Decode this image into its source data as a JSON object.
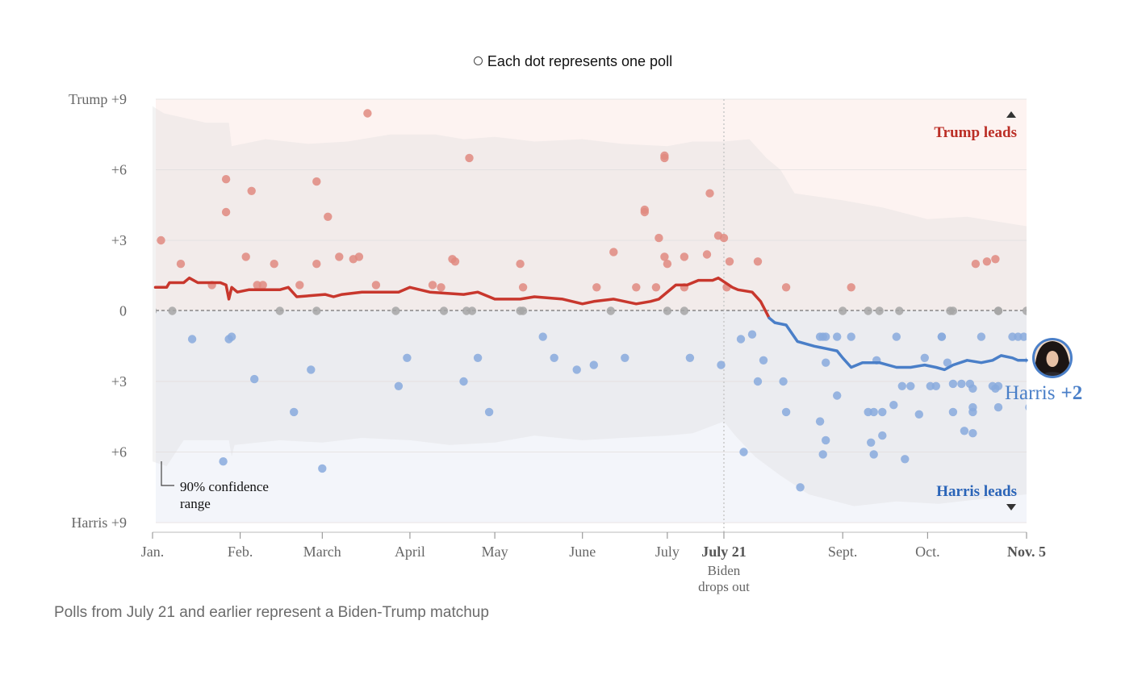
{
  "legend": {
    "label": "Each dot represents one poll"
  },
  "footnote": "Polls from July 21 and earlier represent a Biden-Trump matchup",
  "chart_data": {
    "type": "line",
    "xaxis": {
      "domain": [
        "2024-01-01",
        "2024-11-05"
      ],
      "ticks": [
        {
          "date": "2024-01-01",
          "label": "Jan."
        },
        {
          "date": "2024-02-01",
          "label": "Feb."
        },
        {
          "date": "2024-03-01",
          "label": "March"
        },
        {
          "date": "2024-04-01",
          "label": "April"
        },
        {
          "date": "2024-05-01",
          "label": "May"
        },
        {
          "date": "2024-06-01",
          "label": "June"
        },
        {
          "date": "2024-07-01",
          "label": "July"
        },
        {
          "date": "2024-07-21",
          "label": "July 21",
          "bold": true,
          "sub": [
            "Biden",
            "drops out"
          ]
        },
        {
          "date": "2024-09-01",
          "label": "Sept."
        },
        {
          "date": "2024-10-01",
          "label": "Oct."
        },
        {
          "date": "2024-11-05",
          "label": "Nov. 5",
          "bold": true
        }
      ]
    },
    "yaxis": {
      "domain": [
        -9,
        9
      ],
      "ticks": [
        {
          "value": 9,
          "label": "Trump +9"
        },
        {
          "value": 6,
          "label": "+6"
        },
        {
          "value": 3,
          "label": "+3"
        },
        {
          "value": 0,
          "label": "0"
        },
        {
          "value": -3,
          "label": "+3"
        },
        {
          "value": -6,
          "label": "+6"
        },
        {
          "value": -9,
          "label": "Harris +9"
        }
      ]
    },
    "annotations": {
      "trump_leads": "Trump leads",
      "harris_leads": "Harris leads",
      "confidence": [
        "90% confidence",
        "range"
      ],
      "final_name": "Harris",
      "final_value": "+2"
    },
    "colors": {
      "trump": "#c8372d",
      "harris": "#4a7fc8",
      "trump_dot": "#e08a80",
      "harris_dot": "#88aadd",
      "tie_dot": "#a6a6a6",
      "trump_label": "#bb2e26",
      "harris_label": "#2a64b8",
      "band": "#dcdcdc"
    },
    "band_upper": [
      [
        "2024-01-01",
        8.7
      ],
      [
        "2024-01-05",
        8.4
      ],
      [
        "2024-01-20",
        8.0
      ],
      [
        "2024-01-28",
        8.0
      ],
      [
        "2024-01-29",
        7.0
      ],
      [
        "2024-02-10",
        7.3
      ],
      [
        "2024-02-25",
        7.1
      ],
      [
        "2024-03-10",
        7.2
      ],
      [
        "2024-03-25",
        7.5
      ],
      [
        "2024-04-10",
        7.5
      ],
      [
        "2024-04-20",
        7.3
      ],
      [
        "2024-05-01",
        7.4
      ],
      [
        "2024-05-15",
        7.2
      ],
      [
        "2024-06-01",
        7.3
      ],
      [
        "2024-06-15",
        7.1
      ],
      [
        "2024-07-01",
        7.0
      ],
      [
        "2024-07-10",
        7.2
      ],
      [
        "2024-07-21",
        7.2
      ],
      [
        "2024-07-30",
        7.3
      ],
      [
        "2024-08-05",
        6.5
      ],
      [
        "2024-08-10",
        6.0
      ],
      [
        "2024-08-15",
        5.0
      ],
      [
        "2024-09-01",
        4.7
      ],
      [
        "2024-09-15",
        4.4
      ],
      [
        "2024-10-01",
        3.9
      ],
      [
        "2024-10-15",
        4.0
      ],
      [
        "2024-11-05",
        3.6
      ]
    ],
    "band_lower": [
      [
        "2024-01-01",
        -6.4
      ],
      [
        "2024-01-06",
        -6.6
      ],
      [
        "2024-01-12",
        -5.5
      ],
      [
        "2024-01-28",
        -5.5
      ],
      [
        "2024-01-29",
        -6.2
      ],
      [
        "2024-01-30",
        -5.7
      ],
      [
        "2024-02-15",
        -5.5
      ],
      [
        "2024-03-01",
        -5.6
      ],
      [
        "2024-03-15",
        -5.4
      ],
      [
        "2024-04-01",
        -5.5
      ],
      [
        "2024-04-15",
        -5.7
      ],
      [
        "2024-05-01",
        -5.6
      ],
      [
        "2024-05-15",
        -5.3
      ],
      [
        "2024-06-01",
        -5.5
      ],
      [
        "2024-06-15",
        -5.4
      ],
      [
        "2024-07-01",
        -5.3
      ],
      [
        "2024-07-10",
        -5.2
      ],
      [
        "2024-07-21",
        -4.7
      ],
      [
        "2024-07-25",
        -5.3
      ],
      [
        "2024-08-01",
        -6.2
      ],
      [
        "2024-08-10",
        -7.0
      ],
      [
        "2024-08-20",
        -7.8
      ],
      [
        "2024-09-05",
        -8.3
      ],
      [
        "2024-09-20",
        -8.1
      ],
      [
        "2024-10-05",
        -8.2
      ],
      [
        "2024-10-20",
        -8.0
      ],
      [
        "2024-11-05",
        -7.8
      ]
    ],
    "series": [
      {
        "name": "Trump",
        "values": [
          [
            "2024-01-02",
            1.0
          ],
          [
            "2024-01-06",
            1.0
          ],
          [
            "2024-01-07",
            1.2
          ],
          [
            "2024-01-12",
            1.2
          ],
          [
            "2024-01-14",
            1.4
          ],
          [
            "2024-01-17",
            1.2
          ],
          [
            "2024-01-25",
            1.2
          ],
          [
            "2024-01-27",
            1.1
          ],
          [
            "2024-01-28",
            0.5
          ],
          [
            "2024-01-29",
            1.0
          ],
          [
            "2024-01-31",
            0.8
          ],
          [
            "2024-02-04",
            0.9
          ],
          [
            "2024-02-15",
            0.9
          ],
          [
            "2024-02-18",
            1.0
          ],
          [
            "2024-02-21",
            0.6
          ],
          [
            "2024-03-02",
            0.7
          ],
          [
            "2024-03-05",
            0.6
          ],
          [
            "2024-03-08",
            0.7
          ],
          [
            "2024-03-15",
            0.8
          ],
          [
            "2024-03-28",
            0.8
          ],
          [
            "2024-04-01",
            1.0
          ],
          [
            "2024-04-08",
            0.8
          ],
          [
            "2024-04-20",
            0.7
          ],
          [
            "2024-04-25",
            0.8
          ],
          [
            "2024-05-01",
            0.5
          ],
          [
            "2024-05-10",
            0.5
          ],
          [
            "2024-05-15",
            0.6
          ],
          [
            "2024-05-25",
            0.5
          ],
          [
            "2024-06-01",
            0.3
          ],
          [
            "2024-06-05",
            0.4
          ],
          [
            "2024-06-12",
            0.5
          ],
          [
            "2024-06-20",
            0.3
          ],
          [
            "2024-06-25",
            0.4
          ],
          [
            "2024-06-28",
            0.5
          ],
          [
            "2024-07-04",
            1.1
          ],
          [
            "2024-07-08",
            1.1
          ],
          [
            "2024-07-12",
            1.3
          ],
          [
            "2024-07-17",
            1.3
          ],
          [
            "2024-07-19",
            1.4
          ],
          [
            "2024-07-24",
            1.0
          ],
          [
            "2024-07-26",
            0.9
          ],
          [
            "2024-07-31",
            0.8
          ],
          [
            "2024-08-03",
            0.4
          ],
          [
            "2024-08-06",
            -0.3
          ]
        ]
      },
      {
        "name": "Harris",
        "values": [
          [
            "2024-08-06",
            -0.3
          ],
          [
            "2024-08-08",
            -0.5
          ],
          [
            "2024-08-12",
            -0.6
          ],
          [
            "2024-08-16",
            -1.3
          ],
          [
            "2024-08-22",
            -1.5
          ],
          [
            "2024-08-26",
            -1.6
          ],
          [
            "2024-08-30",
            -1.7
          ],
          [
            "2024-09-01",
            -2.0
          ],
          [
            "2024-09-04",
            -2.4
          ],
          [
            "2024-09-08",
            -2.2
          ],
          [
            "2024-09-14",
            -2.2
          ],
          [
            "2024-09-20",
            -2.4
          ],
          [
            "2024-09-25",
            -2.4
          ],
          [
            "2024-09-30",
            -2.3
          ],
          [
            "2024-10-04",
            -2.4
          ],
          [
            "2024-10-07",
            -2.5
          ],
          [
            "2024-10-10",
            -2.3
          ],
          [
            "2024-10-15",
            -2.1
          ],
          [
            "2024-10-20",
            -2.2
          ],
          [
            "2024-10-24",
            -2.1
          ],
          [
            "2024-10-27",
            -1.9
          ],
          [
            "2024-10-31",
            -2.0
          ],
          [
            "2024-11-02",
            -2.1
          ],
          [
            "2024-11-05",
            -2.1
          ]
        ]
      }
    ],
    "polls": [
      [
        "2024-01-01",
        0
      ],
      [
        "2024-01-04",
        3.0
      ],
      [
        "2024-01-08",
        0
      ],
      [
        "2024-01-11",
        2.0
      ],
      [
        "2024-01-15",
        -1.2
      ],
      [
        "2024-01-22",
        1.1
      ],
      [
        "2024-01-26",
        -6.4
      ],
      [
        "2024-01-27",
        5.6
      ],
      [
        "2024-01-27",
        4.2
      ],
      [
        "2024-01-28",
        -1.2
      ],
      [
        "2024-01-29",
        -1.1
      ],
      [
        "2024-02-03",
        2.3
      ],
      [
        "2024-02-05",
        5.1
      ],
      [
        "2024-02-06",
        -2.9
      ],
      [
        "2024-02-07",
        1.1
      ],
      [
        "2024-02-09",
        1.1
      ],
      [
        "2024-02-13",
        2.0
      ],
      [
        "2024-02-15",
        0
      ],
      [
        "2024-02-20",
        -4.3
      ],
      [
        "2024-02-22",
        1.1
      ],
      [
        "2024-02-26",
        -2.5
      ],
      [
        "2024-02-28",
        5.5
      ],
      [
        "2024-02-28",
        2.0
      ],
      [
        "2024-02-28",
        0
      ],
      [
        "2024-03-01",
        -6.7
      ],
      [
        "2024-03-03",
        4.0
      ],
      [
        "2024-03-07",
        2.3
      ],
      [
        "2024-03-12",
        2.2
      ],
      [
        "2024-03-14",
        2.3
      ],
      [
        "2024-03-17",
        8.4
      ],
      [
        "2024-03-20",
        1.1
      ],
      [
        "2024-03-27",
        0
      ],
      [
        "2024-03-28",
        -3.2
      ],
      [
        "2024-03-31",
        -2.0
      ],
      [
        "2024-04-09",
        1.1
      ],
      [
        "2024-04-12",
        1.0
      ],
      [
        "2024-04-13",
        0
      ],
      [
        "2024-04-16",
        2.2
      ],
      [
        "2024-04-17",
        2.1
      ],
      [
        "2024-04-20",
        -3.0
      ],
      [
        "2024-04-22",
        6.5
      ],
      [
        "2024-04-21",
        0
      ],
      [
        "2024-04-23",
        0
      ],
      [
        "2024-04-25",
        -2.0
      ],
      [
        "2024-04-29",
        -4.3
      ],
      [
        "2024-05-10",
        2.0
      ],
      [
        "2024-05-10",
        0
      ],
      [
        "2024-05-11",
        1.0
      ],
      [
        "2024-05-11",
        0
      ],
      [
        "2024-05-18",
        -1.1
      ],
      [
        "2024-05-22",
        -2.0
      ],
      [
        "2024-05-30",
        -2.5
      ],
      [
        "2024-06-05",
        -2.3
      ],
      [
        "2024-06-06",
        1.0
      ],
      [
        "2024-06-11",
        0
      ],
      [
        "2024-06-12",
        2.5
      ],
      [
        "2024-06-16",
        -2.0
      ],
      [
        "2024-06-20",
        1.0
      ],
      [
        "2024-06-23",
        4.3
      ],
      [
        "2024-06-23",
        4.2
      ],
      [
        "2024-06-27",
        1.0
      ],
      [
        "2024-06-28",
        3.1
      ],
      [
        "2024-06-30",
        2.3
      ],
      [
        "2024-06-30",
        6.6
      ],
      [
        "2024-06-30",
        6.5
      ],
      [
        "2024-07-01",
        2.0
      ],
      [
        "2024-07-01",
        0
      ],
      [
        "2024-07-07",
        1.0
      ],
      [
        "2024-07-07",
        0
      ],
      [
        "2024-07-07",
        2.3
      ],
      [
        "2024-07-09",
        -2.0
      ],
      [
        "2024-07-15",
        2.4
      ],
      [
        "2024-07-16",
        5.0
      ],
      [
        "2024-07-19",
        3.2
      ],
      [
        "2024-07-20",
        -2.3
      ],
      [
        "2024-07-21",
        3.1
      ],
      [
        "2024-07-22",
        1.0
      ],
      [
        "2024-07-23",
        2.1
      ],
      [
        "2024-07-27",
        -1.2
      ],
      [
        "2024-07-28",
        -6.0
      ],
      [
        "2024-07-31",
        -1.0
      ],
      [
        "2024-08-02",
        2.1
      ],
      [
        "2024-08-02",
        -3.0
      ],
      [
        "2024-08-04",
        -2.1
      ],
      [
        "2024-08-11",
        -3.0
      ],
      [
        "2024-08-12",
        1.0
      ],
      [
        "2024-08-12",
        -4.3
      ],
      [
        "2024-08-17",
        -7.5
      ],
      [
        "2024-08-24",
        -4.7
      ],
      [
        "2024-08-24",
        -1.1
      ],
      [
        "2024-08-25",
        -1.1
      ],
      [
        "2024-08-25",
        -6.1
      ],
      [
        "2024-08-26",
        -1.1
      ],
      [
        "2024-08-26",
        -5.5
      ],
      [
        "2024-08-26",
        -2.2
      ],
      [
        "2024-08-30",
        -1.1
      ],
      [
        "2024-08-30",
        -3.6
      ],
      [
        "2024-09-01",
        0
      ],
      [
        "2024-09-04",
        -1.1
      ],
      [
        "2024-09-04",
        1.0
      ],
      [
        "2024-09-10",
        0
      ],
      [
        "2024-09-10",
        -4.3
      ],
      [
        "2024-09-11",
        -5.6
      ],
      [
        "2024-09-12",
        -4.3
      ],
      [
        "2024-09-12",
        -6.1
      ],
      [
        "2024-09-13",
        -2.1
      ],
      [
        "2024-09-14",
        0
      ],
      [
        "2024-09-15",
        -4.3
      ],
      [
        "2024-09-15",
        -5.3
      ],
      [
        "2024-09-19",
        -4.0
      ],
      [
        "2024-09-20",
        -1.1
      ],
      [
        "2024-09-21",
        0
      ],
      [
        "2024-09-22",
        -3.2
      ],
      [
        "2024-09-23",
        -6.3
      ],
      [
        "2024-09-25",
        -3.2
      ],
      [
        "2024-09-28",
        -4.4
      ],
      [
        "2024-09-30",
        -2.0
      ],
      [
        "2024-10-02",
        -3.2
      ],
      [
        "2024-10-04",
        -3.2
      ],
      [
        "2024-10-06",
        -1.1
      ],
      [
        "2024-10-06",
        -1.1
      ],
      [
        "2024-10-08",
        -2.2
      ],
      [
        "2024-10-09",
        0
      ],
      [
        "2024-10-10",
        -4.3
      ],
      [
        "2024-10-10",
        -3.1
      ],
      [
        "2024-10-10",
        0
      ],
      [
        "2024-10-13",
        -3.1
      ],
      [
        "2024-10-14",
        -5.1
      ],
      [
        "2024-10-16",
        -3.1
      ],
      [
        "2024-10-17",
        -5.2
      ],
      [
        "2024-10-17",
        -3.3
      ],
      [
        "2024-10-17",
        -4.3
      ],
      [
        "2024-10-17",
        -4.1
      ],
      [
        "2024-10-18",
        2.0
      ],
      [
        "2024-10-20",
        -1.1
      ],
      [
        "2024-10-22",
        2.1
      ],
      [
        "2024-10-24",
        -3.2
      ],
      [
        "2024-10-25",
        -3.3
      ],
      [
        "2024-10-25",
        2.2
      ],
      [
        "2024-10-26",
        -3.2
      ],
      [
        "2024-10-26",
        -4.1
      ],
      [
        "2024-10-26",
        0
      ],
      [
        "2024-10-26",
        0
      ],
      [
        "2024-10-31",
        -1.1
      ],
      [
        "2024-11-02",
        -1.1
      ],
      [
        "2024-11-04",
        -1.1
      ],
      [
        "2024-11-05",
        0
      ],
      [
        "2024-11-06",
        -4.1
      ],
      [
        "2024-11-06",
        -2.1
      ]
    ]
  }
}
